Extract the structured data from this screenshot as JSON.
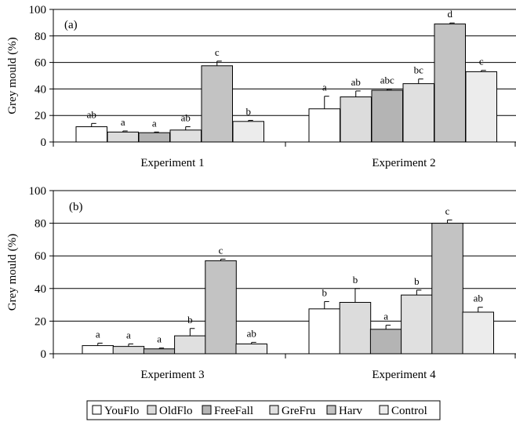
{
  "legend": [
    {
      "label": "YouFlo",
      "color": "#ffffff"
    },
    {
      "label": "OldFlo",
      "color": "#dcdcdc"
    },
    {
      "label": "FreeFall",
      "color": "#b4b4b4"
    },
    {
      "label": "GreFru",
      "color": "#e0e0e0"
    },
    {
      "label": "Harv",
      "color": "#c3c3c3"
    },
    {
      "label": "Control",
      "color": "#ececec"
    }
  ],
  "chart_data": [
    {
      "type": "bar",
      "panel_label": "(a)",
      "ylabel": "Grey mould (%)",
      "ylim": [
        0,
        100
      ],
      "yticks": [
        0,
        20,
        40,
        60,
        80,
        100
      ],
      "categories": [
        "Experiment 1",
        "Experiment 2"
      ],
      "grid": true,
      "series": [
        {
          "name": "YouFlo",
          "values": [
            11.5,
            25
          ],
          "errors": [
            2.5,
            9.5
          ],
          "letters": [
            "ab",
            "a"
          ]
        },
        {
          "name": "OldFlo",
          "values": [
            7.5,
            34
          ],
          "errors": [
            0.8,
            4.5
          ],
          "letters": [
            "a",
            "ab"
          ]
        },
        {
          "name": "FreeFall",
          "values": [
            7,
            39
          ],
          "errors": [
            0.5,
            0.8
          ],
          "letters": [
            "a",
            "abc"
          ]
        },
        {
          "name": "GreFru",
          "values": [
            9,
            44
          ],
          "errors": [
            2.5,
            3.5
          ],
          "letters": [
            "ab",
            "bc"
          ]
        },
        {
          "name": "Harv",
          "values": [
            57.5,
            89
          ],
          "errors": [
            3.5,
            0.8
          ],
          "letters": [
            "c",
            "d"
          ]
        },
        {
          "name": "Control",
          "values": [
            15.5,
            53
          ],
          "errors": [
            0.8,
            1
          ],
          "letters": [
            "b",
            "c"
          ]
        }
      ]
    },
    {
      "type": "bar",
      "panel_label": "(b)",
      "ylabel": "Grey mould (%)",
      "ylim": [
        0,
        100
      ],
      "yticks": [
        0,
        20,
        40,
        60,
        80,
        100
      ],
      "categories": [
        "Experiment 3",
        "Experiment 4"
      ],
      "grid": true,
      "series": [
        {
          "name": "YouFlo",
          "values": [
            5,
            27.5
          ],
          "errors": [
            1.5,
            4.5
          ],
          "letters": [
            "a",
            "b"
          ]
        },
        {
          "name": "OldFlo",
          "values": [
            4.5,
            31.5
          ],
          "errors": [
            1.5,
            8.5
          ],
          "letters": [
            "a",
            "b"
          ]
        },
        {
          "name": "FreeFall",
          "values": [
            3,
            15
          ],
          "errors": [
            0.5,
            2.5
          ],
          "letters": [
            "a",
            "a"
          ]
        },
        {
          "name": "GreFru",
          "values": [
            11,
            36
          ],
          "errors": [
            4.5,
            3
          ],
          "letters": [
            "b",
            "b"
          ]
        },
        {
          "name": "Harv",
          "values": [
            57,
            80
          ],
          "errors": [
            1,
            2
          ],
          "letters": [
            "c",
            "c"
          ]
        },
        {
          "name": "Control",
          "values": [
            6,
            25.5
          ],
          "errors": [
            1,
            3
          ],
          "letters": [
            "ab",
            "ab"
          ]
        }
      ]
    }
  ]
}
